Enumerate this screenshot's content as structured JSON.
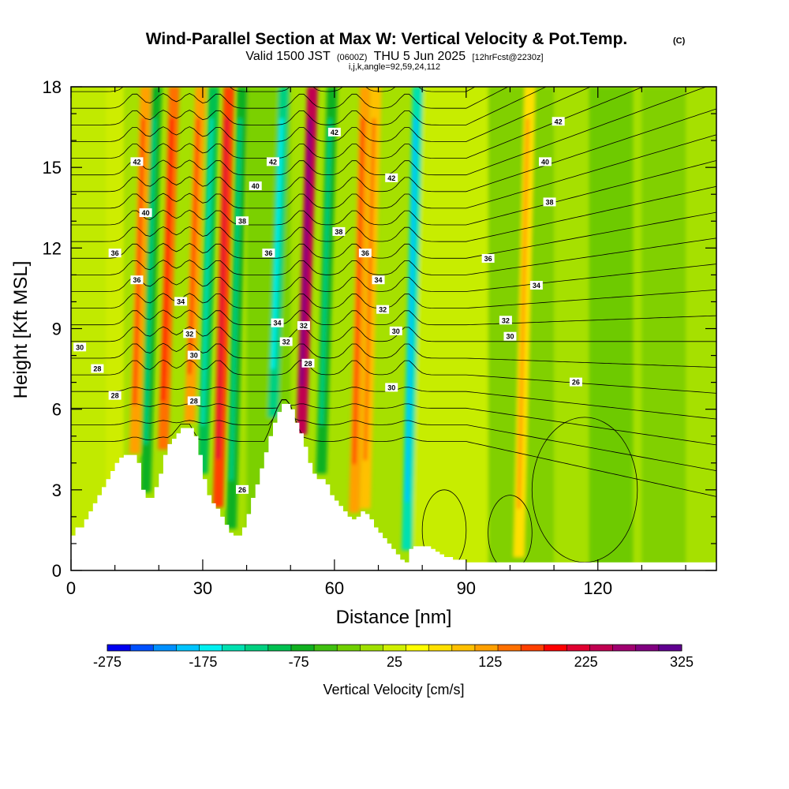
{
  "chart_data": {
    "type": "heatmap",
    "title": "Wind-Parallel Section at Max W: Vertical Velocity & Pot.Temp.",
    "title_unit": "(C)",
    "subtitle_main_a": "Valid 1500 JST",
    "subtitle_small_a": "(0600Z)",
    "subtitle_main_b": "THU 5 Jun 2025",
    "subtitle_small_b": "[12hrFcst@2230z]",
    "subtitle2": "i,j,k,angle=92,59,24,112",
    "xlabel": "Distance [nm]",
    "ylabel": "Height [Kft MSL]",
    "xlim": [
      0,
      147
    ],
    "ylim": [
      0,
      18
    ],
    "x_ticks": [
      "0",
      "30",
      "60",
      "90",
      "120"
    ],
    "y_ticks": [
      "0",
      "3",
      "6",
      "9",
      "12",
      "15",
      "18"
    ],
    "colorbar": {
      "label": "Vertical Velocity [cm/s]",
      "tick_labels": [
        "-275",
        "-175",
        "-75",
        "25",
        "125",
        "225",
        "325"
      ],
      "colors": [
        "#0000f0",
        "#0050ff",
        "#0090ff",
        "#00c4ff",
        "#00f0f0",
        "#00e0b0",
        "#00d080",
        "#00c050",
        "#10b020",
        "#40c010",
        "#70d000",
        "#a0e000",
        "#d0f000",
        "#ffff00",
        "#ffe000",
        "#ffc000",
        "#ffa000",
        "#ff7000",
        "#ff4000",
        "#ff0000",
        "#e00030",
        "#c00050",
        "#a00070",
        "#800080",
        "#600090"
      ]
    },
    "terrain_profile": {
      "x": [
        0,
        1,
        3,
        4,
        5,
        6,
        7,
        8,
        9,
        10,
        11,
        12,
        13,
        14,
        15,
        16,
        17,
        18,
        19,
        20,
        21,
        22,
        23,
        24,
        25,
        26,
        27,
        28,
        29,
        30,
        31,
        32,
        33,
        34,
        35,
        36,
        37,
        38,
        39,
        40,
        41,
        42,
        43,
        44,
        45,
        46,
        47,
        48,
        49,
        50,
        51,
        52,
        53,
        54,
        55,
        56,
        57,
        58,
        59,
        60,
        61,
        62,
        63,
        64,
        65,
        66,
        67,
        68,
        69,
        70,
        71,
        72,
        73,
        74,
        75,
        76,
        77,
        78,
        79,
        80,
        81,
        82,
        83,
        84,
        85,
        86,
        87,
        88,
        89,
        90,
        91,
        92,
        93,
        94,
        95,
        96,
        97,
        98,
        99,
        100,
        105,
        110,
        115,
        120,
        125,
        130,
        135,
        140,
        147
      ],
      "z": [
        1.3,
        1.6,
        1.9,
        2.2,
        2.5,
        2.8,
        3.1,
        3.4,
        3.7,
        4.0,
        4.2,
        4.3,
        4.3,
        4.3,
        4.0,
        3.0,
        2.7,
        2.7,
        3.1,
        3.6,
        4.3,
        4.7,
        4.9,
        5.1,
        5.3,
        5.3,
        5.3,
        5.0,
        4.3,
        3.4,
        2.8,
        2.5,
        2.3,
        2.0,
        1.7,
        1.4,
        1.3,
        1.3,
        1.6,
        2.1,
        2.7,
        3.2,
        3.8,
        4.4,
        5.0,
        5.5,
        5.9,
        6.2,
        6.2,
        6.0,
        5.5,
        5.1,
        4.6,
        4.0,
        3.6,
        3.4,
        3.4,
        3.2,
        2.8,
        2.6,
        2.4,
        2.2,
        2.0,
        1.9,
        2.0,
        2.2,
        2.1,
        1.9,
        1.6,
        1.4,
        1.2,
        1.0,
        0.8,
        0.6,
        0.4,
        0.3,
        0.8,
        0.9,
        0.9,
        0.9,
        0.9,
        0.8,
        0.7,
        0.6,
        0.5,
        0.5,
        0.4,
        0.4,
        0.4,
        0.3,
        0.3,
        0.3,
        0.3,
        0.3,
        0.3,
        0.3,
        0.3,
        0.3,
        0.3,
        0.3,
        0.3,
        0.3,
        0.3,
        0.3,
        0.3,
        0.3,
        0.3,
        0.3,
        0.3
      ]
    },
    "updrafts": [
      {
        "x": 14.5,
        "w": 125
      },
      {
        "x": 21,
        "w": 150
      },
      {
        "x": 27,
        "w": 125
      },
      {
        "x": 33.5,
        "w": 175
      },
      {
        "x": 52.5,
        "w": 250
      },
      {
        "x": 64.5,
        "w": 125
      },
      {
        "x": 67,
        "w": 100
      },
      {
        "x": 102,
        "w": 75
      }
    ],
    "downdrafts": [
      {
        "x": 17,
        "w": -75
      },
      {
        "x": 30,
        "w": -100
      },
      {
        "x": 36.5,
        "w": -75
      },
      {
        "x": 46,
        "w": -125
      },
      {
        "x": 57,
        "w": -75
      },
      {
        "x": 76.5,
        "w": -150
      }
    ],
    "contour_labels": [
      "26",
      "28",
      "30",
      "32",
      "34",
      "36",
      "38",
      "40",
      "42"
    ]
  }
}
